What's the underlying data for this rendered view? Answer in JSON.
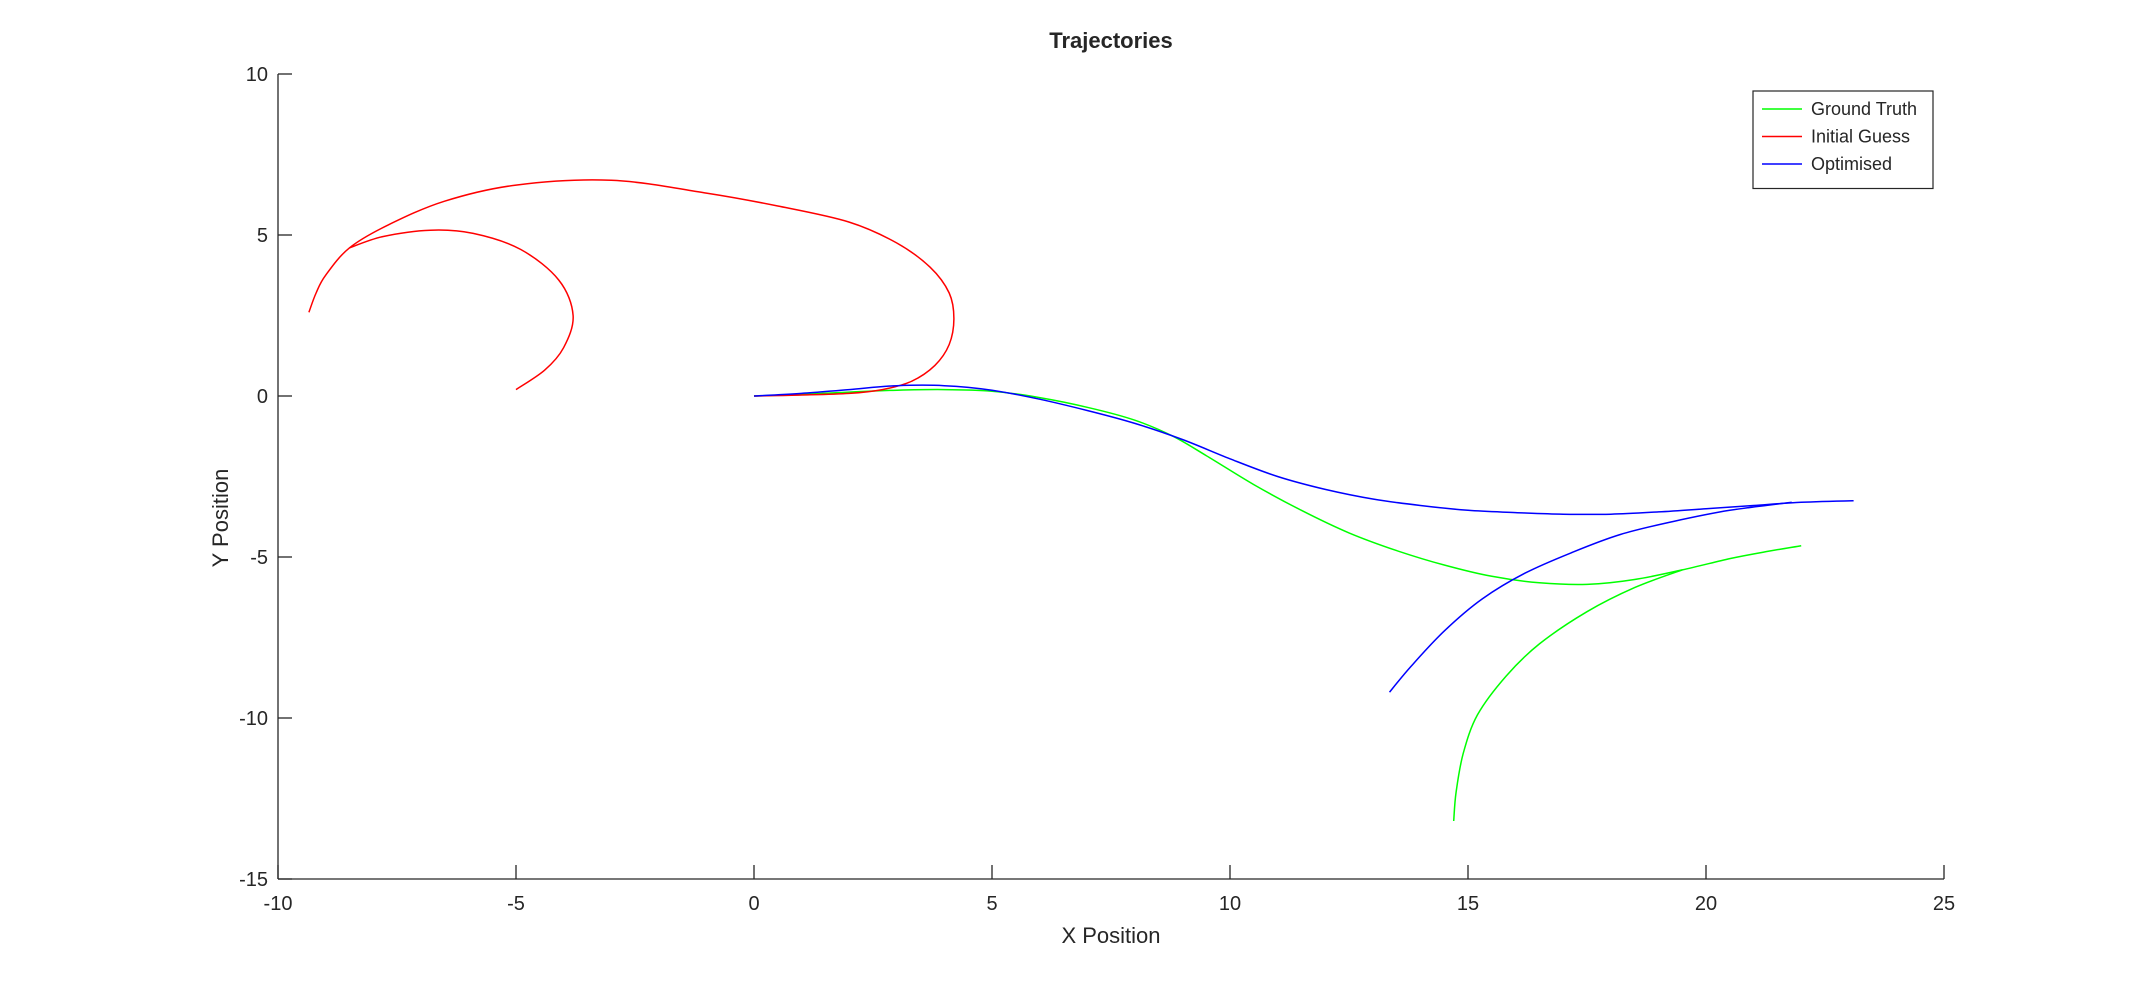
{
  "chart_data": {
    "type": "line",
    "title": "Trajectories",
    "xlabel": "X Position",
    "ylabel": "Y Position",
    "xlim": [
      -10,
      25
    ],
    "ylim": [
      -15,
      10
    ],
    "xticks": [
      -10,
      -5,
      0,
      5,
      10,
      15,
      20,
      25
    ],
    "yticks": [
      -15,
      -10,
      -5,
      0,
      5,
      10
    ],
    "xtick_labels": [
      "-10",
      "-5",
      "0",
      "5",
      "10",
      "15",
      "20",
      "25"
    ],
    "ytick_labels": [
      "-15",
      "-10",
      "-5",
      "0",
      "5",
      "10"
    ],
    "grid": false,
    "legend_position": "top-right",
    "series": [
      {
        "name": "Ground Truth",
        "color": "#00ff00",
        "points": [
          [
            0,
            0
          ],
          [
            1,
            0.05
          ],
          [
            2,
            0.12
          ],
          [
            3,
            0.18
          ],
          [
            4,
            0.2
          ],
          [
            5,
            0.15
          ],
          [
            6,
            -0.05
          ],
          [
            7,
            -0.35
          ],
          [
            8,
            -0.75
          ],
          [
            8.8,
            -1.25
          ],
          [
            9.5,
            -1.85
          ],
          [
            10.5,
            -2.75
          ],
          [
            11.5,
            -3.55
          ],
          [
            12.5,
            -4.25
          ],
          [
            13.5,
            -4.8
          ],
          [
            14.5,
            -5.25
          ],
          [
            15.5,
            -5.6
          ],
          [
            16.5,
            -5.8
          ],
          [
            17.5,
            -5.85
          ],
          [
            18.5,
            -5.7
          ],
          [
            19.5,
            -5.4
          ],
          [
            20.5,
            -5.05
          ],
          [
            21.2,
            -4.85
          ],
          [
            22,
            -4.65
          ]
        ],
        "branch": [
          [
            19.5,
            -5.4
          ],
          [
            18.5,
            -5.95
          ],
          [
            17.5,
            -6.7
          ],
          [
            16.5,
            -7.7
          ],
          [
            15.8,
            -8.7
          ],
          [
            15.2,
            -9.9
          ],
          [
            14.9,
            -11.1
          ],
          [
            14.75,
            -12.3
          ],
          [
            14.7,
            -13.2
          ]
        ]
      },
      {
        "name": "Initial Guess",
        "color": "#ff0000",
        "points": [
          [
            0,
            0
          ],
          [
            1,
            0.03
          ],
          [
            2,
            0.08
          ],
          [
            2.7,
            0.2
          ],
          [
            3.3,
            0.45
          ],
          [
            3.8,
            0.95
          ],
          [
            4.1,
            1.6
          ],
          [
            4.2,
            2.4
          ],
          [
            4.1,
            3.2
          ],
          [
            3.7,
            4.0
          ],
          [
            3.0,
            4.75
          ],
          [
            2.0,
            5.4
          ],
          [
            0.5,
            5.9
          ],
          [
            -1,
            6.3
          ],
          [
            -3,
            6.7
          ],
          [
            -5,
            6.55
          ],
          [
            -6.5,
            6.05
          ],
          [
            -7.7,
            5.3
          ],
          [
            -8.5,
            4.6
          ],
          [
            -9.0,
            3.75
          ],
          [
            -9.2,
            3.2
          ],
          [
            -9.35,
            2.6
          ]
        ],
        "branch": [
          [
            -8.5,
            4.6
          ],
          [
            -7.8,
            4.95
          ],
          [
            -6.8,
            5.15
          ],
          [
            -5.9,
            5.05
          ],
          [
            -4.9,
            4.55
          ],
          [
            -4.1,
            3.6
          ],
          [
            -3.8,
            2.5
          ],
          [
            -4.0,
            1.5
          ],
          [
            -4.4,
            0.8
          ],
          [
            -5.0,
            0.2
          ]
        ]
      },
      {
        "name": "Optimised",
        "color": "#0000ff",
        "points": [
          [
            0,
            0
          ],
          [
            1,
            0.08
          ],
          [
            2,
            0.2
          ],
          [
            3,
            0.32
          ],
          [
            4,
            0.32
          ],
          [
            5,
            0.18
          ],
          [
            6,
            -0.1
          ],
          [
            7,
            -0.45
          ],
          [
            8,
            -0.85
          ],
          [
            9,
            -1.35
          ],
          [
            10,
            -1.95
          ],
          [
            11,
            -2.5
          ],
          [
            12,
            -2.9
          ],
          [
            13,
            -3.2
          ],
          [
            14,
            -3.4
          ],
          [
            15,
            -3.55
          ],
          [
            16,
            -3.62
          ],
          [
            17,
            -3.67
          ],
          [
            18,
            -3.67
          ],
          [
            19,
            -3.6
          ],
          [
            20,
            -3.5
          ],
          [
            21,
            -3.4
          ],
          [
            22,
            -3.3
          ],
          [
            23.1,
            -3.25
          ]
        ],
        "branch": [
          [
            21.8,
            -3.3
          ],
          [
            20.5,
            -3.55
          ],
          [
            19.3,
            -3.9
          ],
          [
            18.2,
            -4.3
          ],
          [
            17.2,
            -4.85
          ],
          [
            16.2,
            -5.5
          ],
          [
            15.3,
            -6.3
          ],
          [
            14.5,
            -7.3
          ],
          [
            13.8,
            -8.4
          ],
          [
            13.35,
            -9.2
          ]
        ]
      }
    ]
  }
}
